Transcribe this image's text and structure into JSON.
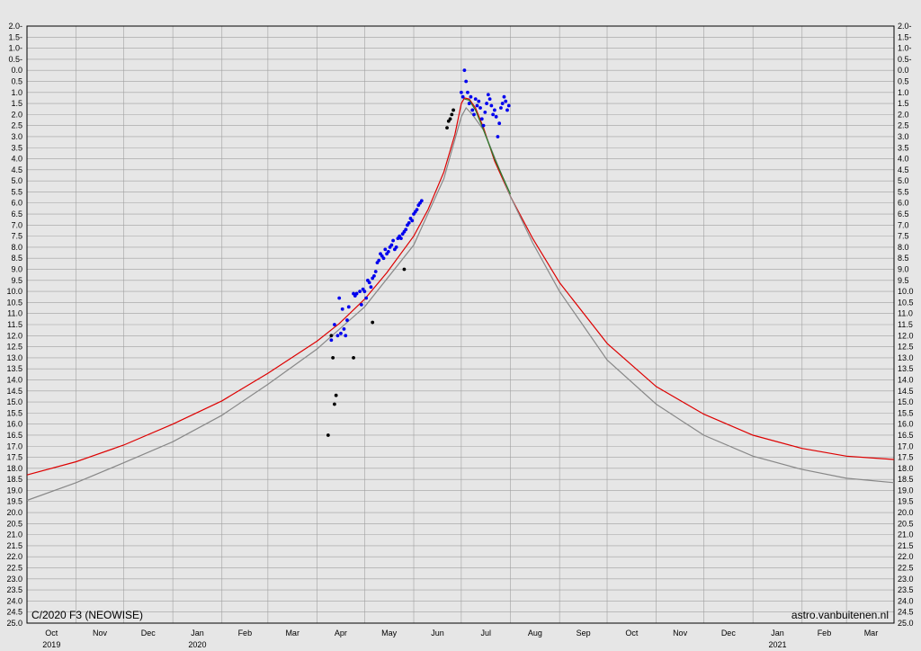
{
  "chart_data": {
    "type": "scatter",
    "title": "",
    "caption": "C/2020 F3 (NEOWISE)",
    "credit": "astro.vanbuitenen.nl",
    "xlabel": "",
    "ylabel": "",
    "grid": true,
    "y_reversed": true,
    "ylim": [
      -2.0,
      25.0
    ],
    "xlim": [
      "2019-10-01",
      "2021-03-31"
    ],
    "colors": {
      "background": "#e6e6e6",
      "grid": "#a0a0a0",
      "axis": "#000000",
      "series": [
        "#dd0000",
        "#888888",
        "#2a7a2a",
        "#0000ee",
        "#000000"
      ]
    },
    "y_ticks": [
      "2.0-",
      "1.5-",
      "1.0-",
      "0.5-",
      "0.0",
      "0.5",
      "1.0",
      "1.5",
      "2.0",
      "2.5",
      "3.0",
      "3.5",
      "4.0",
      "4.5",
      "5.0",
      "5.5",
      "6.0",
      "6.5",
      "7.0",
      "7.5",
      "8.0",
      "8.5",
      "9.0",
      "9.5",
      "10.0",
      "10.5",
      "11.0",
      "11.5",
      "12.0",
      "12.5",
      "13.0",
      "13.5",
      "14.0",
      "14.5",
      "15.0",
      "15.5",
      "16.0",
      "16.5",
      "17.0",
      "17.5",
      "18.0",
      "18.5",
      "19.0",
      "19.5",
      "20.0",
      "20.5",
      "21.0",
      "21.5",
      "22.0",
      "22.5",
      "23.0",
      "23.5",
      "24.0",
      "24.5",
      "25.0"
    ],
    "x_ticks": [
      {
        "label": "Oct",
        "date": "2019-10-01"
      },
      {
        "label": "Nov",
        "date": "2019-11-01"
      },
      {
        "label": "Dec",
        "date": "2019-12-01"
      },
      {
        "label": "Jan",
        "date": "2020-01-01"
      },
      {
        "label": "Feb",
        "date": "2020-02-01"
      },
      {
        "label": "Mar",
        "date": "2020-03-01"
      },
      {
        "label": "Apr",
        "date": "2020-04-01"
      },
      {
        "label": "May",
        "date": "2020-05-01"
      },
      {
        "label": "Jun",
        "date": "2020-06-01"
      },
      {
        "label": "Jul",
        "date": "2020-07-01"
      },
      {
        "label": "Aug",
        "date": "2020-08-01"
      },
      {
        "label": "Sep",
        "date": "2020-09-01"
      },
      {
        "label": "Oct",
        "date": "2020-10-01"
      },
      {
        "label": "Nov",
        "date": "2020-11-01"
      },
      {
        "label": "Dec",
        "date": "2020-12-01"
      },
      {
        "label": "Jan",
        "date": "2021-01-01"
      },
      {
        "label": "Feb",
        "date": "2021-02-01"
      },
      {
        "label": "Mar",
        "date": "2021-03-01"
      }
    ],
    "x_year_labels": [
      {
        "label": "2019",
        "date": "2019-10-01"
      },
      {
        "label": "2020",
        "date": "2020-01-01"
      },
      {
        "label": "2021",
        "date": "2021-01-01"
      }
    ],
    "series": [
      {
        "kind": "line",
        "color": "#dd0000",
        "x": [
          "2019-10-01",
          "2019-11-01",
          "2019-12-01",
          "2020-01-01",
          "2020-02-01",
          "2020-03-01",
          "2020-04-01",
          "2020-04-15",
          "2020-05-01",
          "2020-05-15",
          "2020-06-01",
          "2020-06-10",
          "2020-06-20",
          "2020-06-27",
          "2020-07-01",
          "2020-07-03",
          "2020-07-06",
          "2020-07-10",
          "2020-07-15",
          "2020-07-22",
          "2020-08-01",
          "2020-08-15",
          "2020-09-01",
          "2020-10-01",
          "2020-11-01",
          "2020-12-01",
          "2021-01-01",
          "2021-02-01",
          "2021-03-01",
          "2021-03-31"
        ],
        "y": [
          18.3,
          17.7,
          16.95,
          16.0,
          14.95,
          13.7,
          12.25,
          11.45,
          10.35,
          9.15,
          7.5,
          6.3,
          4.6,
          2.9,
          1.5,
          1.25,
          1.3,
          1.7,
          2.6,
          4.1,
          5.7,
          7.6,
          9.6,
          12.35,
          14.3,
          15.55,
          16.5,
          17.1,
          17.45,
          17.6
        ]
      },
      {
        "kind": "line",
        "color": "#888888",
        "x": [
          "2019-10-01",
          "2019-11-01",
          "2019-12-01",
          "2020-01-01",
          "2020-02-01",
          "2020-03-01",
          "2020-04-01",
          "2020-05-01",
          "2020-06-01",
          "2020-06-20",
          "2020-07-01",
          "2020-07-04",
          "2020-07-08",
          "2020-07-15",
          "2020-08-01",
          "2020-08-15",
          "2020-09-01",
          "2020-10-01",
          "2020-11-01",
          "2020-12-01",
          "2021-01-01",
          "2021-02-01",
          "2021-03-01",
          "2021-03-31"
        ],
        "y": [
          19.45,
          18.65,
          17.75,
          16.8,
          15.6,
          14.2,
          12.6,
          10.7,
          7.9,
          4.9,
          2.1,
          1.7,
          2.0,
          2.7,
          5.7,
          7.8,
          10.0,
          13.1,
          15.1,
          16.5,
          17.45,
          18.05,
          18.45,
          18.65
        ]
      },
      {
        "kind": "line",
        "color": "#2a7a2a",
        "x": [
          "2020-07-03",
          "2020-07-06",
          "2020-07-10",
          "2020-07-15",
          "2020-07-22",
          "2020-08-01"
        ],
        "y": [
          1.3,
          1.35,
          1.8,
          2.7,
          4.0,
          5.6
        ]
      },
      {
        "kind": "points",
        "color": "#0000ee",
        "x": [
          "2020-04-10",
          "2020-04-12",
          "2020-04-14",
          "2020-04-15",
          "2020-04-16",
          "2020-04-17",
          "2020-04-18",
          "2020-04-19",
          "2020-04-20",
          "2020-04-21",
          "2020-04-24",
          "2020-04-25",
          "2020-04-26",
          "2020-04-28",
          "2020-04-29",
          "2020-04-30",
          "2020-05-01",
          "2020-05-02",
          "2020-05-03",
          "2020-05-04",
          "2020-05-05",
          "2020-05-06",
          "2020-05-07",
          "2020-05-08",
          "2020-05-09",
          "2020-05-10",
          "2020-05-11",
          "2020-05-12",
          "2020-05-13",
          "2020-05-14",
          "2020-05-15",
          "2020-05-16",
          "2020-05-17",
          "2020-05-18",
          "2020-05-19",
          "2020-05-20",
          "2020-05-21",
          "2020-05-22",
          "2020-05-23",
          "2020-05-24",
          "2020-05-25",
          "2020-05-26",
          "2020-05-27",
          "2020-05-28",
          "2020-05-29",
          "2020-05-30",
          "2020-05-31",
          "2020-06-01",
          "2020-06-02",
          "2020-06-03",
          "2020-06-04",
          "2020-06-05",
          "2020-06-06",
          "2020-07-01",
          "2020-07-02",
          "2020-07-03",
          "2020-07-04",
          "2020-07-05",
          "2020-07-06",
          "2020-07-07",
          "2020-07-08",
          "2020-07-09",
          "2020-07-10",
          "2020-07-11",
          "2020-07-12",
          "2020-07-13",
          "2020-07-14",
          "2020-07-15",
          "2020-07-16",
          "2020-07-17",
          "2020-07-18",
          "2020-07-19",
          "2020-07-20",
          "2020-07-21",
          "2020-07-22",
          "2020-07-23",
          "2020-07-24",
          "2020-07-25",
          "2020-07-26",
          "2020-07-27",
          "2020-07-28",
          "2020-07-29",
          "2020-07-30",
          "2020-07-31"
        ],
        "y": [
          12.2,
          11.5,
          12.0,
          10.3,
          11.9,
          10.8,
          11.7,
          12.0,
          11.3,
          10.7,
          10.1,
          10.2,
          10.1,
          10.0,
          10.6,
          9.9,
          10.0,
          10.3,
          9.5,
          9.6,
          9.8,
          9.4,
          9.3,
          9.1,
          8.7,
          8.6,
          8.3,
          8.4,
          8.5,
          8.1,
          8.3,
          8.2,
          8.0,
          7.9,
          7.7,
          8.1,
          8.0,
          7.6,
          7.5,
          7.6,
          7.4,
          7.3,
          7.2,
          7.0,
          6.9,
          6.7,
          6.8,
          6.5,
          6.4,
          6.3,
          6.1,
          6.0,
          5.9,
          1.0,
          1.2,
          0.0,
          0.5,
          1.0,
          1.5,
          1.2,
          1.8,
          2.0,
          1.3,
          1.6,
          1.4,
          1.7,
          2.2,
          2.5,
          1.9,
          1.5,
          1.1,
          1.3,
          1.6,
          2.0,
          1.8,
          2.1,
          3.0,
          2.4,
          1.7,
          1.5,
          1.2,
          1.4,
          1.8,
          1.6
        ]
      },
      {
        "kind": "points",
        "color": "#000000",
        "x": [
          "2020-04-08",
          "2020-04-10",
          "2020-04-11",
          "2020-04-12",
          "2020-04-13",
          "2020-04-24",
          "2020-05-06",
          "2020-05-26",
          "2020-06-22",
          "2020-06-23",
          "2020-06-24",
          "2020-06-25",
          "2020-06-26"
        ],
        "y": [
          16.5,
          12.0,
          13.0,
          15.1,
          14.7,
          13.0,
          11.4,
          9.0,
          2.6,
          2.3,
          2.2,
          2.0,
          1.8
        ]
      }
    ]
  }
}
